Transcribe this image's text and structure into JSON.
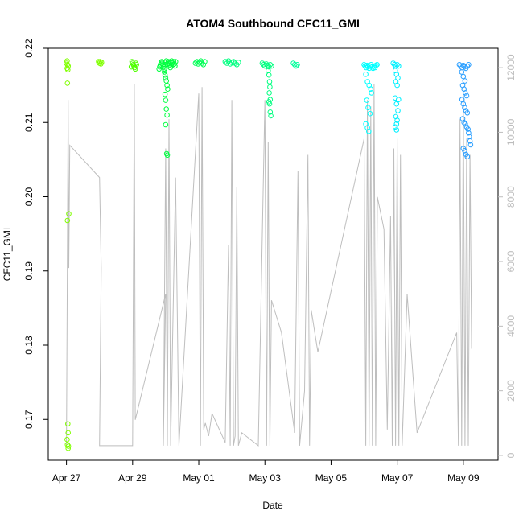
{
  "chart_data": {
    "type": "scatter",
    "title": "ATOM4 Southbound CFC11_GMI",
    "xlabel": "Date",
    "ylabel": "CFC11_GMI",
    "y2label": "",
    "x_ticks": [
      "Apr 27",
      "Apr 29",
      "May 01",
      "May 03",
      "May 05",
      "May 07",
      "May 09"
    ],
    "x_tick_days": [
      0,
      2,
      4,
      6,
      8,
      10,
      12
    ],
    "x_unit_note": "",
    "xlim": [
      -0.55,
      13.05
    ],
    "ylim": [
      0.1645,
      0.22
    ],
    "y_ticks": [
      "0.17",
      "0.18",
      "0.19",
      "0.20",
      "0.21",
      "0.22"
    ],
    "y_tick_values": [
      0.17,
      0.18,
      0.19,
      0.2,
      0.21,
      0.22
    ],
    "y2lim": [
      -150,
      12600
    ],
    "y2_ticks": [
      "0",
      "2000",
      "4000",
      "6000",
      "8000",
      "10000",
      "12000"
    ],
    "y2_tick_values": [
      0,
      2000,
      4000,
      6000,
      8000,
      10000,
      12000
    ],
    "grid": false,
    "legend": "none",
    "colors": {
      "altitude_line": "#bebebe",
      "right_axis": "#bdbdbd",
      "flight_colors": [
        "#80ff00",
        "#50ff00",
        "#00ff40",
        "#00ff55",
        "#00ff80",
        "#00ff9c",
        "#00ffff",
        "#00f0ff",
        "#2b9fff"
      ]
    },
    "series": [
      {
        "points": [
          {
            "x": 0.02,
            "y": 0.2183
          },
          {
            "x": 0.0,
            "y": 0.218
          },
          {
            "x": 0.03,
            "y": 0.2178
          },
          {
            "x": 0.05,
            "y": 0.2176
          },
          {
            "x": 0.02,
            "y": 0.2173
          },
          {
            "x": 0.04,
            "y": 0.2171
          },
          {
            "x": 0.03,
            "y": 0.2153
          },
          {
            "x": 0.07,
            "y": 0.1977
          },
          {
            "x": 0.03,
            "y": 0.1968
          },
          {
            "x": 0.04,
            "y": 0.1694
          },
          {
            "x": 0.05,
            "y": 0.1682
          },
          {
            "x": 0.02,
            "y": 0.1673
          },
          {
            "x": 0.03,
            "y": 0.1666
          },
          {
            "x": 0.05,
            "y": 0.1661
          },
          {
            "x": 0.06,
            "y": 0.1664
          }
        ]
      },
      {
        "points": [
          {
            "x": 0.97,
            "y": 0.2182
          },
          {
            "x": 1.0,
            "y": 0.218
          },
          {
            "x": 1.02,
            "y": 0.2182
          },
          {
            "x": 1.04,
            "y": 0.2179
          },
          {
            "x": 1.06,
            "y": 0.2181
          }
        ]
      },
      {
        "points": [
          {
            "x": 1.98,
            "y": 0.2182
          },
          {
            "x": 2.0,
            "y": 0.218
          },
          {
            "x": 2.02,
            "y": 0.2178
          },
          {
            "x": 2.04,
            "y": 0.2176
          },
          {
            "x": 2.06,
            "y": 0.2174
          },
          {
            "x": 2.08,
            "y": 0.2172
          },
          {
            "x": 2.1,
            "y": 0.218
          },
          {
            "x": 1.96,
            "y": 0.2175
          },
          {
            "x": 2.12,
            "y": 0.2178
          }
        ]
      },
      {
        "points": [
          {
            "x": 2.8,
            "y": 0.2172
          },
          {
            "x": 2.82,
            "y": 0.2175
          },
          {
            "x": 2.84,
            "y": 0.2178
          },
          {
            "x": 2.86,
            "y": 0.218
          },
          {
            "x": 2.88,
            "y": 0.2182
          },
          {
            "x": 2.9,
            "y": 0.218
          },
          {
            "x": 2.92,
            "y": 0.2178
          },
          {
            "x": 2.94,
            "y": 0.2175
          },
          {
            "x": 2.96,
            "y": 0.2172
          },
          {
            "x": 2.98,
            "y": 0.2178
          },
          {
            "x": 3.0,
            "y": 0.2181
          },
          {
            "x": 3.02,
            "y": 0.2183
          },
          {
            "x": 3.04,
            "y": 0.2179
          },
          {
            "x": 3.06,
            "y": 0.2176
          },
          {
            "x": 3.08,
            "y": 0.2182
          },
          {
            "x": 3.1,
            "y": 0.218
          },
          {
            "x": 3.12,
            "y": 0.2177
          },
          {
            "x": 3.14,
            "y": 0.2174
          },
          {
            "x": 3.16,
            "y": 0.2181
          },
          {
            "x": 3.18,
            "y": 0.2183
          },
          {
            "x": 3.2,
            "y": 0.218
          },
          {
            "x": 3.22,
            "y": 0.2178
          },
          {
            "x": 3.24,
            "y": 0.2182
          },
          {
            "x": 3.26,
            "y": 0.2179
          },
          {
            "x": 3.28,
            "y": 0.2176
          },
          {
            "x": 3.3,
            "y": 0.2182
          },
          {
            "x": 2.96,
            "y": 0.2168
          },
          {
            "x": 2.98,
            "y": 0.2164
          },
          {
            "x": 3.0,
            "y": 0.216
          },
          {
            "x": 3.02,
            "y": 0.2156
          },
          {
            "x": 3.04,
            "y": 0.215
          },
          {
            "x": 3.06,
            "y": 0.2145
          },
          {
            "x": 2.98,
            "y": 0.2138
          },
          {
            "x": 3.0,
            "y": 0.213
          },
          {
            "x": 3.02,
            "y": 0.2118
          },
          {
            "x": 3.04,
            "y": 0.211
          },
          {
            "x": 3.0,
            "y": 0.2097
          },
          {
            "x": 3.03,
            "y": 0.2058
          },
          {
            "x": 3.05,
            "y": 0.2056
          }
        ]
      },
      {
        "points": [
          {
            "x": 3.9,
            "y": 0.218
          },
          {
            "x": 3.94,
            "y": 0.2182
          },
          {
            "x": 3.98,
            "y": 0.2179
          },
          {
            "x": 4.02,
            "y": 0.2181
          },
          {
            "x": 4.06,
            "y": 0.2183
          },
          {
            "x": 4.1,
            "y": 0.218
          },
          {
            "x": 4.14,
            "y": 0.2178
          },
          {
            "x": 4.18,
            "y": 0.2182
          }
        ]
      },
      {
        "points": [
          {
            "x": 4.8,
            "y": 0.2182
          },
          {
            "x": 4.85,
            "y": 0.218
          },
          {
            "x": 4.9,
            "y": 0.2183
          },
          {
            "x": 4.95,
            "y": 0.2179
          },
          {
            "x": 5.0,
            "y": 0.2181
          },
          {
            "x": 5.05,
            "y": 0.2182
          },
          {
            "x": 5.1,
            "y": 0.218
          },
          {
            "x": 5.15,
            "y": 0.2178
          },
          {
            "x": 5.2,
            "y": 0.2181
          }
        ]
      },
      {
        "points": [
          {
            "x": 5.92,
            "y": 0.218
          },
          {
            "x": 5.96,
            "y": 0.2178
          },
          {
            "x": 6.0,
            "y": 0.2176
          },
          {
            "x": 6.04,
            "y": 0.2179
          },
          {
            "x": 6.08,
            "y": 0.2177
          },
          {
            "x": 6.12,
            "y": 0.2175
          },
          {
            "x": 6.16,
            "y": 0.2178
          },
          {
            "x": 6.2,
            "y": 0.2176
          },
          {
            "x": 6.1,
            "y": 0.217
          },
          {
            "x": 6.12,
            "y": 0.2164
          },
          {
            "x": 6.14,
            "y": 0.2155
          },
          {
            "x": 6.15,
            "y": 0.2148
          },
          {
            "x": 6.13,
            "y": 0.214
          },
          {
            "x": 6.16,
            "y": 0.2131
          },
          {
            "x": 6.12,
            "y": 0.2128
          },
          {
            "x": 6.14,
            "y": 0.2125
          },
          {
            "x": 6.16,
            "y": 0.2114
          },
          {
            "x": 6.18,
            "y": 0.2109
          }
        ]
      },
      {
        "points": [
          {
            "x": 6.86,
            "y": 0.218
          },
          {
            "x": 6.9,
            "y": 0.2178
          },
          {
            "x": 6.94,
            "y": 0.2176
          },
          {
            "x": 6.98,
            "y": 0.2178
          }
        ]
      },
      {
        "points": [
          {
            "x": 9.0,
            "y": 0.2178
          },
          {
            "x": 9.03,
            "y": 0.2176
          },
          {
            "x": 9.06,
            "y": 0.2174
          },
          {
            "x": 9.09,
            "y": 0.2177
          },
          {
            "x": 9.12,
            "y": 0.2175
          },
          {
            "x": 9.15,
            "y": 0.2173
          },
          {
            "x": 9.18,
            "y": 0.2176
          },
          {
            "x": 9.21,
            "y": 0.2178
          },
          {
            "x": 9.24,
            "y": 0.2175
          },
          {
            "x": 9.27,
            "y": 0.2173
          },
          {
            "x": 9.3,
            "y": 0.2176
          },
          {
            "x": 9.33,
            "y": 0.2174
          },
          {
            "x": 9.36,
            "y": 0.2177
          },
          {
            "x": 9.39,
            "y": 0.2178
          },
          {
            "x": 9.05,
            "y": 0.2165
          },
          {
            "x": 9.1,
            "y": 0.2155
          },
          {
            "x": 9.15,
            "y": 0.215
          },
          {
            "x": 9.2,
            "y": 0.2145
          },
          {
            "x": 9.22,
            "y": 0.214
          },
          {
            "x": 9.08,
            "y": 0.213
          },
          {
            "x": 9.12,
            "y": 0.212
          },
          {
            "x": 9.18,
            "y": 0.2112
          },
          {
            "x": 9.05,
            "y": 0.2098
          },
          {
            "x": 9.1,
            "y": 0.2093
          },
          {
            "x": 9.14,
            "y": 0.2088
          }
        ]
      },
      {
        "points": [
          {
            "x": 9.88,
            "y": 0.218
          },
          {
            "x": 9.92,
            "y": 0.2178
          },
          {
            "x": 9.96,
            "y": 0.2176
          },
          {
            "x": 10.0,
            "y": 0.2178
          },
          {
            "x": 10.04,
            "y": 0.2176
          },
          {
            "x": 9.94,
            "y": 0.217
          },
          {
            "x": 9.98,
            "y": 0.2165
          },
          {
            "x": 10.02,
            "y": 0.216
          },
          {
            "x": 9.96,
            "y": 0.2155
          },
          {
            "x": 10.0,
            "y": 0.215
          },
          {
            "x": 9.94,
            "y": 0.2133
          },
          {
            "x": 10.04,
            "y": 0.2131
          },
          {
            "x": 9.98,
            "y": 0.2125
          },
          {
            "x": 10.02,
            "y": 0.2116
          },
          {
            "x": 9.96,
            "y": 0.2108
          },
          {
            "x": 10.0,
            "y": 0.2103
          },
          {
            "x": 9.98,
            "y": 0.2098
          },
          {
            "x": 9.94,
            "y": 0.2094
          },
          {
            "x": 9.98,
            "y": 0.209
          }
        ]
      },
      {
        "points": [
          {
            "x": 11.88,
            "y": 0.2178
          },
          {
            "x": 11.92,
            "y": 0.2176
          },
          {
            "x": 11.96,
            "y": 0.2174
          },
          {
            "x": 12.0,
            "y": 0.2177
          },
          {
            "x": 12.04,
            "y": 0.2175
          },
          {
            "x": 12.08,
            "y": 0.2173
          },
          {
            "x": 12.12,
            "y": 0.2176
          },
          {
            "x": 12.16,
            "y": 0.2178
          },
          {
            "x": 11.95,
            "y": 0.2168
          },
          {
            "x": 12.0,
            "y": 0.2162
          },
          {
            "x": 12.05,
            "y": 0.2156
          },
          {
            "x": 11.98,
            "y": 0.215
          },
          {
            "x": 12.02,
            "y": 0.2145
          },
          {
            "x": 12.06,
            "y": 0.214
          },
          {
            "x": 12.1,
            "y": 0.2136
          },
          {
            "x": 11.96,
            "y": 0.2131
          },
          {
            "x": 12.0,
            "y": 0.2125
          },
          {
            "x": 12.04,
            "y": 0.212
          },
          {
            "x": 12.08,
            "y": 0.2116
          },
          {
            "x": 12.12,
            "y": 0.2113
          },
          {
            "x": 11.98,
            "y": 0.2105
          },
          {
            "x": 12.02,
            "y": 0.21
          },
          {
            "x": 12.06,
            "y": 0.2098
          },
          {
            "x": 12.1,
            "y": 0.2094
          },
          {
            "x": 12.14,
            "y": 0.2091
          },
          {
            "x": 12.16,
            "y": 0.2086
          },
          {
            "x": 12.18,
            "y": 0.2081
          },
          {
            "x": 12.2,
            "y": 0.2075
          },
          {
            "x": 12.22,
            "y": 0.207
          },
          {
            "x": 12.0,
            "y": 0.2065
          },
          {
            "x": 12.04,
            "y": 0.2062
          },
          {
            "x": 12.08,
            "y": 0.2057
          },
          {
            "x": 12.12,
            "y": 0.2054
          }
        ]
      }
    ],
    "altitude_trace": [
      [
        0.0,
        300
      ],
      [
        0.05,
        11000
      ],
      [
        0.07,
        5800
      ],
      [
        0.1,
        9600
      ],
      [
        1.0,
        8600
      ],
      [
        1.05,
        5800
      ],
      [
        1.0,
        300
      ],
      [
        2.0,
        300
      ],
      [
        2.05,
        11500
      ],
      [
        2.08,
        1100
      ],
      [
        3.0,
        5000
      ],
      [
        2.93,
        300
      ],
      [
        3.0,
        9500
      ],
      [
        3.05,
        300
      ],
      [
        3.1,
        10400
      ],
      [
        3.15,
        300
      ],
      [
        3.3,
        8600
      ],
      [
        3.4,
        300
      ],
      [
        4.0,
        11200
      ],
      [
        4.05,
        300
      ],
      [
        4.1,
        11400
      ],
      [
        4.15,
        800
      ],
      [
        4.2,
        1000
      ],
      [
        4.3,
        600
      ],
      [
        4.4,
        1300
      ],
      [
        4.8,
        400
      ],
      [
        4.9,
        6500
      ],
      [
        4.95,
        300
      ],
      [
        5.0,
        11000
      ],
      [
        5.05,
        300
      ],
      [
        5.1,
        600
      ],
      [
        5.15,
        8300
      ],
      [
        5.2,
        300
      ],
      [
        5.3,
        700
      ],
      [
        5.8,
        300
      ],
      [
        6.0,
        11000
      ],
      [
        6.05,
        300
      ],
      [
        6.1,
        9700
      ],
      [
        6.15,
        300
      ],
      [
        6.2,
        4800
      ],
      [
        6.5,
        3800
      ],
      [
        6.9,
        700
      ],
      [
        7.0,
        8800
      ],
      [
        7.05,
        300
      ],
      [
        7.2,
        2000
      ],
      [
        7.3,
        9300
      ],
      [
        7.35,
        300
      ],
      [
        7.4,
        4500
      ],
      [
        7.6,
        3200
      ],
      [
        9.0,
        9800
      ],
      [
        9.05,
        300
      ],
      [
        9.1,
        11000
      ],
      [
        9.15,
        300
      ],
      [
        9.2,
        10800
      ],
      [
        9.25,
        300
      ],
      [
        9.3,
        11500
      ],
      [
        9.35,
        300
      ],
      [
        9.4,
        8000
      ],
      [
        9.6,
        7000
      ],
      [
        9.7,
        800
      ],
      [
        9.8,
        7400
      ],
      [
        9.85,
        300
      ],
      [
        9.9,
        9500
      ],
      [
        9.95,
        300
      ],
      [
        10.0,
        9800
      ],
      [
        10.05,
        300
      ],
      [
        10.1,
        9300
      ],
      [
        10.15,
        300
      ],
      [
        10.3,
        5000
      ],
      [
        10.6,
        700
      ],
      [
        11.8,
        3800
      ],
      [
        11.85,
        300
      ],
      [
        11.9,
        10400
      ],
      [
        11.95,
        300
      ],
      [
        12.0,
        11200
      ],
      [
        12.05,
        300
      ],
      [
        12.1,
        9800
      ],
      [
        12.15,
        300
      ],
      [
        12.2,
        9300
      ],
      [
        12.25,
        3300
      ]
    ]
  }
}
